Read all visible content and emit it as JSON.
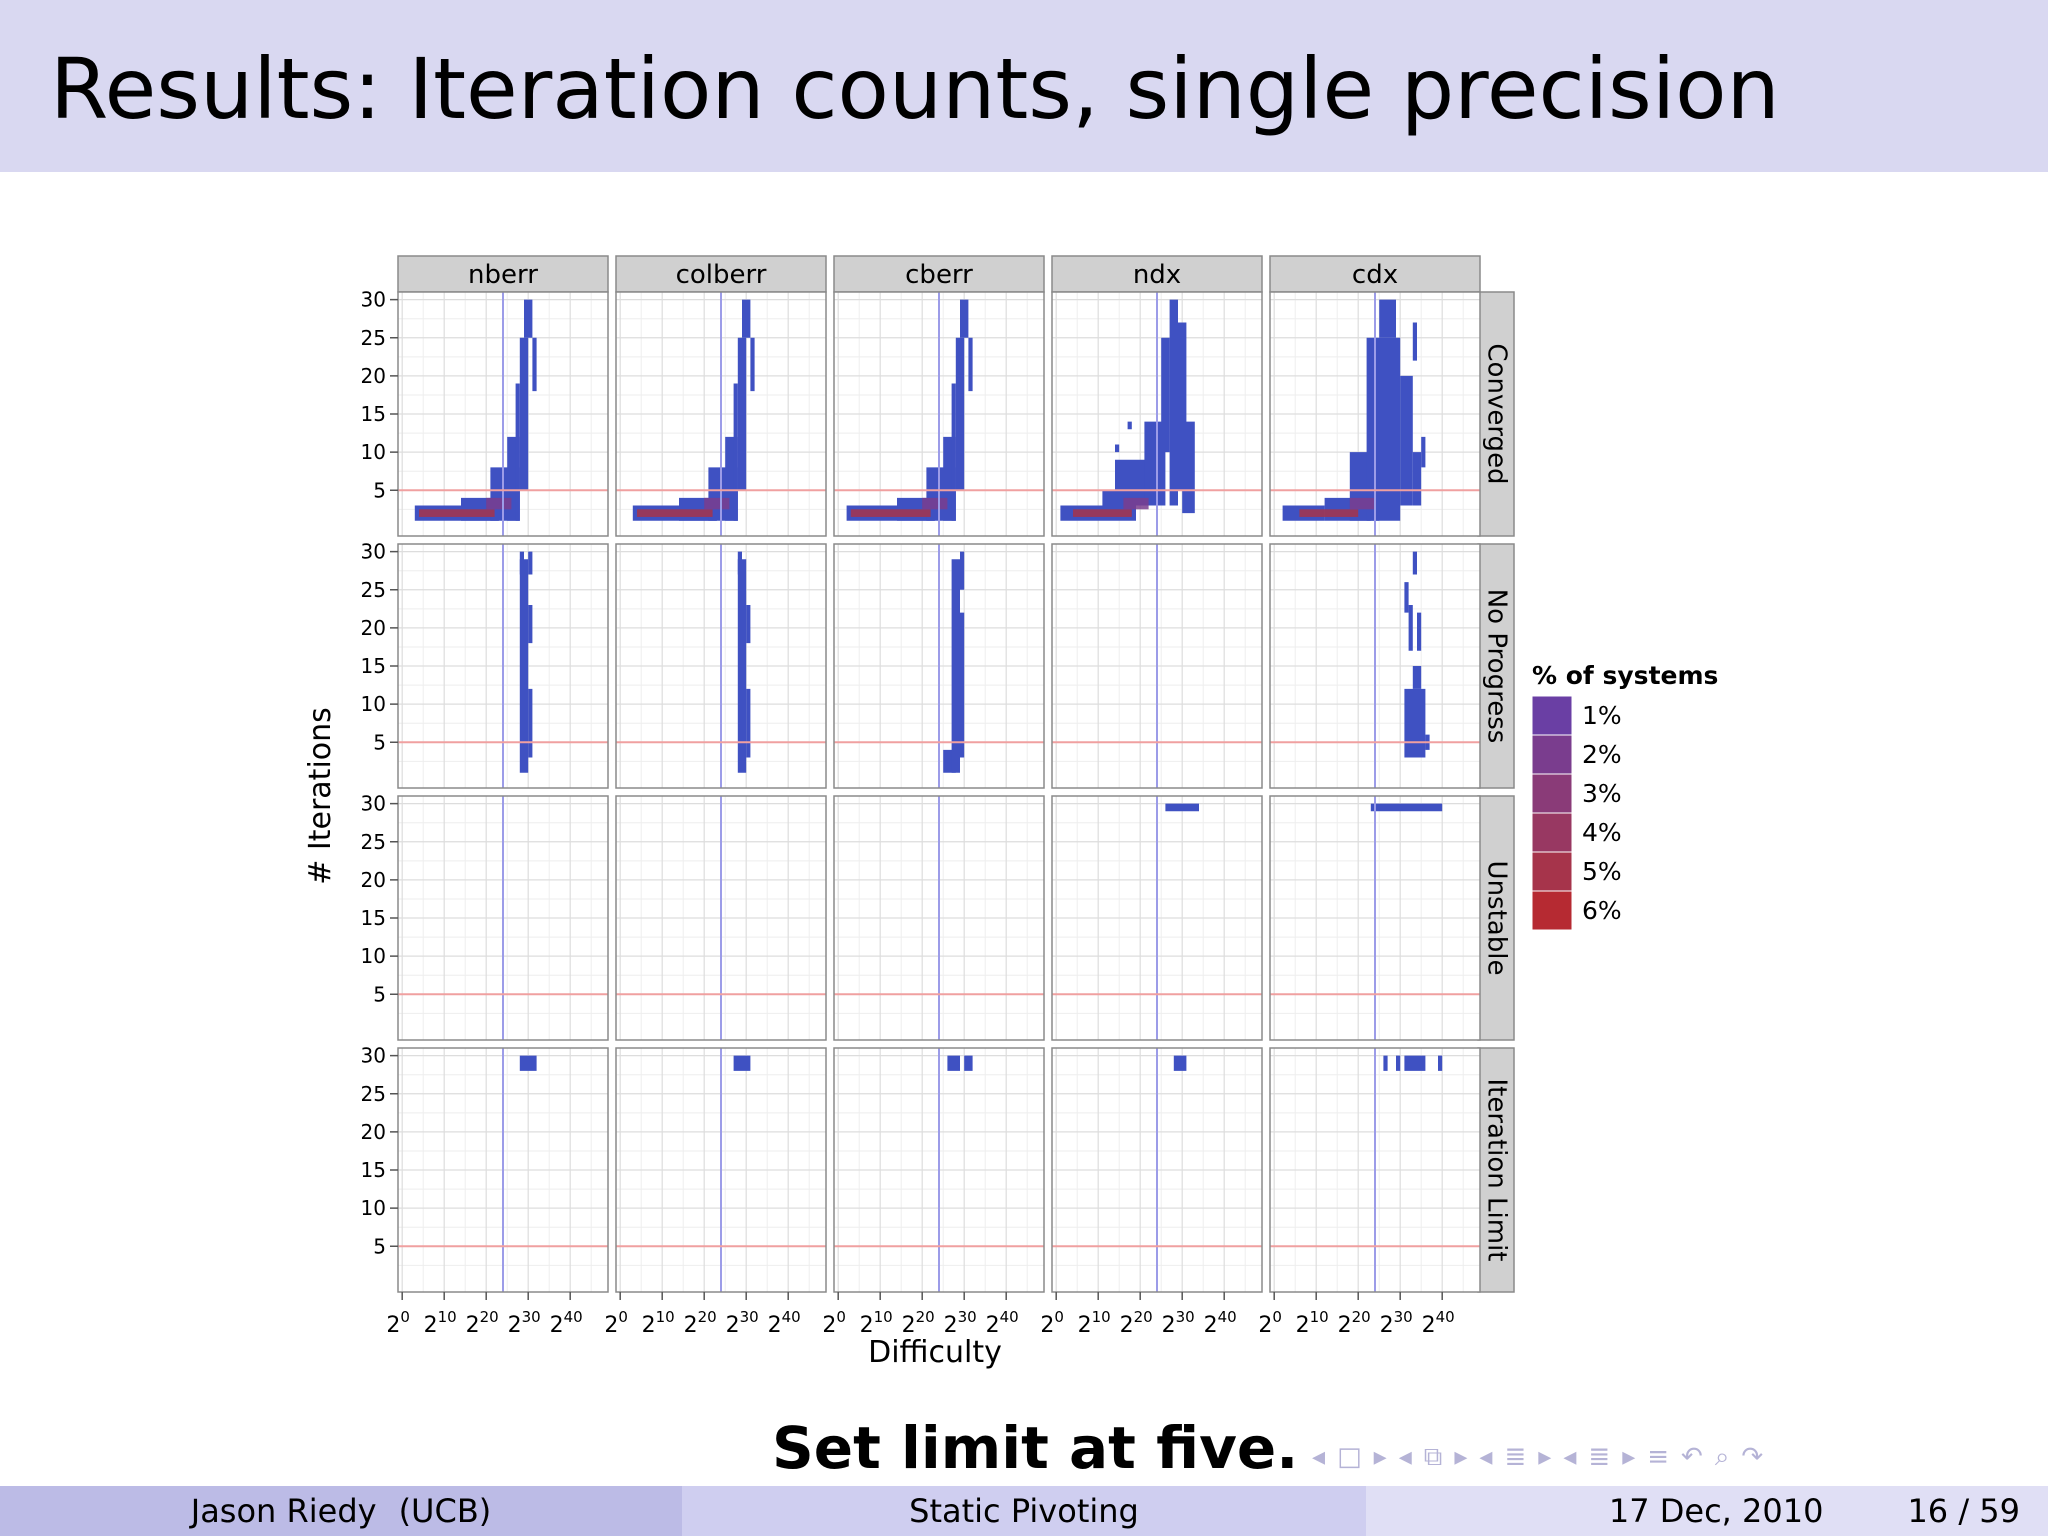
{
  "slide": {
    "title": "Results: Iteration counts, single precision",
    "callout": "Set limit at five."
  },
  "footer": {
    "author": "Jason Riedy",
    "affiliation": "(UCB)",
    "talk_title": "Static Pivoting",
    "date": "17 Dec, 2010",
    "page": "16 / 59"
  },
  "nav_icons": [
    "arrow-left-icon",
    "frame-icon",
    "arrow-right-icon",
    "arrow-left-icon",
    "subsection-icon",
    "arrow-right-icon",
    "arrow-left-icon",
    "section-icon",
    "arrow-right-icon",
    "arrow-left-icon",
    "outline-icon",
    "arrow-right-icon",
    "align-icon",
    "undo-icon",
    "search-icon",
    "redo-icon"
  ],
  "chart_data": {
    "type": "heatmap",
    "xlabel": "Difficulty",
    "ylabel": "# Iterations",
    "x_scale": "log2",
    "x_ticks": [
      0,
      10,
      20,
      30,
      40
    ],
    "x_tick_base": "2",
    "x_tick_exponents": [
      "0",
      "10",
      "20",
      "30",
      "40"
    ],
    "y_ticks": [
      5,
      10,
      15,
      20,
      25,
      30
    ],
    "ylim": [
      1,
      30
    ],
    "columns": [
      "nberr",
      "colberr",
      "cberr",
      "ndx",
      "cdx"
    ],
    "rows": [
      "Converged",
      "No Progress",
      "Unstable",
      "Iteration Limit"
    ],
    "reference_lines": {
      "vertical_log2_difficulty": 24,
      "horizontal_iterations": 5
    },
    "legend": {
      "title": "% of systems",
      "entries": [
        {
          "label": "1%",
          "color": "#6a3fa4"
        },
        {
          "label": "2%",
          "color": "#7a3d8e"
        },
        {
          "label": "3%",
          "color": "#8a3b78"
        },
        {
          "label": "4%",
          "color": "#983862"
        },
        {
          "label": "5%",
          "color": "#a6344b"
        },
        {
          "label": "6%",
          "color": "#b62a32"
        }
      ]
    },
    "cell_color": "#3f51c2",
    "regions": [
      {
        "column": "nberr",
        "row": "Converged",
        "rects": [
          [
            3,
            23,
            1,
            3
          ],
          [
            14,
            23,
            1,
            4
          ],
          [
            21,
            28,
            1,
            8
          ],
          [
            25,
            28,
            1,
            12
          ],
          [
            27,
            28,
            1,
            19
          ],
          [
            28,
            30,
            5,
            25
          ],
          [
            29,
            31,
            25,
            30
          ],
          [
            31,
            32,
            18,
            25
          ]
        ]
      },
      {
        "column": "colberr",
        "row": "Converged",
        "rects": [
          [
            3,
            23,
            1,
            3
          ],
          [
            14,
            23,
            1,
            4
          ],
          [
            21,
            28,
            1,
            8
          ],
          [
            25,
            28,
            1,
            12
          ],
          [
            27,
            28,
            1,
            19
          ],
          [
            28,
            30,
            5,
            25
          ],
          [
            29,
            31,
            25,
            30
          ],
          [
            31,
            32,
            18,
            25
          ]
        ]
      },
      {
        "column": "cberr",
        "row": "Converged",
        "rects": [
          [
            2,
            23,
            1,
            3
          ],
          [
            14,
            23,
            1,
            4
          ],
          [
            21,
            28,
            1,
            8
          ],
          [
            25,
            28,
            1,
            12
          ],
          [
            27,
            28,
            1,
            19
          ],
          [
            28,
            30,
            5,
            25
          ],
          [
            29,
            31,
            25,
            30
          ],
          [
            31,
            32,
            18,
            25
          ]
        ]
      },
      {
        "column": "ndx",
        "row": "Converged",
        "rects": [
          [
            1,
            19,
            1,
            3
          ],
          [
            11,
            19,
            3,
            5
          ],
          [
            14,
            23,
            3,
            9
          ],
          [
            21,
            26,
            3,
            14
          ],
          [
            25,
            27,
            10,
            25
          ],
          [
            27,
            29,
            3,
            30
          ],
          [
            29,
            31,
            5,
            27
          ],
          [
            30,
            33,
            2,
            14
          ],
          [
            14,
            15,
            10,
            11
          ],
          [
            17,
            18,
            13,
            14
          ]
        ]
      },
      {
        "column": "cdx",
        "row": "Converged",
        "rects": [
          [
            2,
            12,
            1,
            3
          ],
          [
            12,
            23,
            1,
            4
          ],
          [
            18,
            25,
            1,
            10
          ],
          [
            22,
            30,
            1,
            25
          ],
          [
            25,
            29,
            25,
            30
          ],
          [
            30,
            33,
            3,
            20
          ],
          [
            33,
            35,
            3,
            10
          ],
          [
            35,
            36,
            8,
            12
          ],
          [
            33,
            34,
            22,
            27
          ]
        ]
      },
      {
        "column": "nberr",
        "row": "No Progress",
        "rects": [
          [
            28,
            30,
            1,
            29
          ],
          [
            30,
            31,
            3,
            12
          ],
          [
            30,
            31,
            18,
            23
          ],
          [
            28,
            29,
            27,
            30
          ],
          [
            30,
            31,
            27,
            30
          ]
        ]
      },
      {
        "column": "colberr",
        "row": "No Progress",
        "rects": [
          [
            28,
            30,
            1,
            29
          ],
          [
            30,
            31,
            3,
            12
          ],
          [
            30,
            31,
            18,
            23
          ],
          [
            28,
            29,
            27,
            30
          ]
        ]
      },
      {
        "column": "cberr",
        "row": "No Progress",
        "rects": [
          [
            25,
            28,
            1,
            4
          ],
          [
            27,
            29,
            1,
            29
          ],
          [
            29,
            30,
            3,
            22
          ],
          [
            29,
            30,
            25,
            30
          ]
        ]
      },
      {
        "column": "cdx",
        "row": "No Progress",
        "rects": [
          [
            31,
            36,
            3,
            12
          ],
          [
            33,
            35,
            12,
            15
          ],
          [
            32,
            33,
            17,
            23
          ],
          [
            34,
            35,
            17,
            22
          ],
          [
            33,
            34,
            27,
            30
          ],
          [
            31,
            32,
            22,
            26
          ],
          [
            36,
            37,
            4,
            6
          ]
        ]
      },
      {
        "column": "ndx",
        "row": "Unstable",
        "rects": [
          [
            26,
            34,
            29,
            30
          ]
        ]
      },
      {
        "column": "cdx",
        "row": "Unstable",
        "rects": [
          [
            23,
            40,
            29,
            30
          ]
        ]
      },
      {
        "column": "nberr",
        "row": "Iteration Limit",
        "rects": [
          [
            28,
            32,
            28,
            30
          ]
        ]
      },
      {
        "column": "colberr",
        "row": "Iteration Limit",
        "rects": [
          [
            27,
            31,
            28,
            30
          ]
        ]
      },
      {
        "column": "cberr",
        "row": "Iteration Limit",
        "rects": [
          [
            26,
            29,
            28,
            30
          ],
          [
            30,
            32,
            28,
            30
          ]
        ]
      },
      {
        "column": "ndx",
        "row": "Iteration Limit",
        "rects": [
          [
            28,
            31,
            28,
            30
          ]
        ]
      },
      {
        "column": "cdx",
        "row": "Iteration Limit",
        "rects": [
          [
            26,
            27,
            28,
            30
          ],
          [
            29,
            30,
            28,
            30
          ],
          [
            31,
            36,
            28,
            30
          ],
          [
            39,
            40,
            28,
            30
          ]
        ]
      }
    ],
    "red_cells": [
      {
        "column": "nberr",
        "row": "Converged",
        "rects": [
          [
            4,
            22,
            1.5,
            2.5
          ],
          [
            20,
            26,
            2.5,
            4
          ]
        ]
      },
      {
        "column": "colberr",
        "row": "Converged",
        "rects": [
          [
            4,
            22,
            1.5,
            2.5
          ],
          [
            20,
            26,
            2.5,
            4
          ]
        ]
      },
      {
        "column": "cberr",
        "row": "Converged",
        "rects": [
          [
            3,
            22,
            1.5,
            2.5
          ],
          [
            20,
            26,
            2.5,
            4
          ]
        ]
      },
      {
        "column": "ndx",
        "row": "Converged",
        "rects": [
          [
            4,
            18,
            1.5,
            2.5
          ],
          [
            16,
            22,
            2.5,
            4
          ]
        ]
      },
      {
        "column": "cdx",
        "row": "Converged",
        "rects": [
          [
            6,
            20,
            1.5,
            2.5
          ],
          [
            18,
            24,
            2.5,
            4
          ]
        ]
      }
    ]
  }
}
